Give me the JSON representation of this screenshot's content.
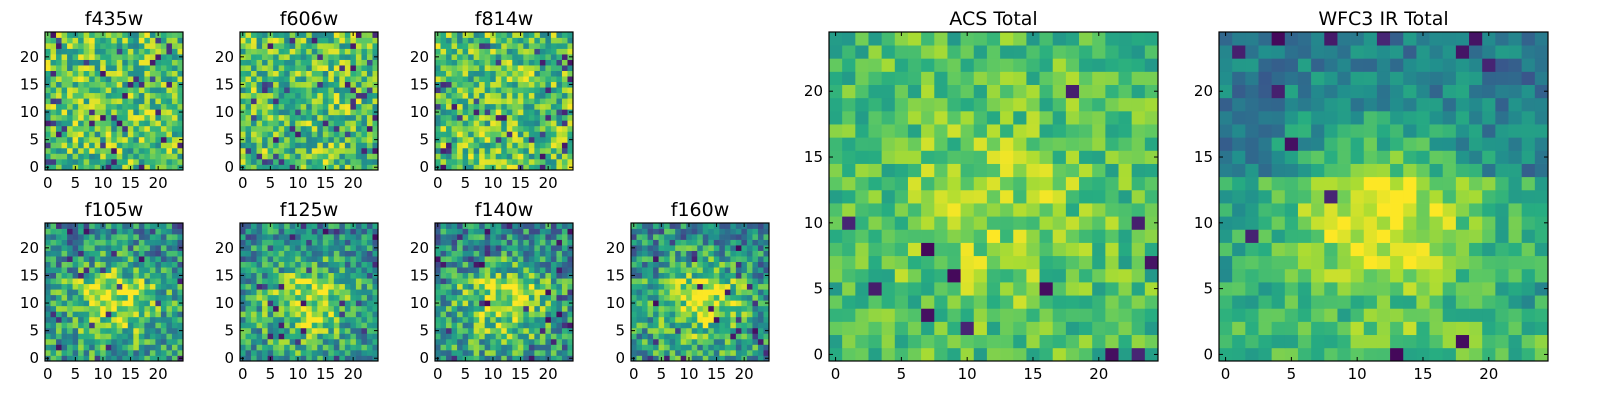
{
  "figure": {
    "colormap": "viridis",
    "colors": {
      "low": "#440154",
      "mid": "#21918c",
      "high": "#fde725",
      "frame": "#000000",
      "background": "#ffffff"
    }
  },
  "chart_data": [
    {
      "type": "heatmap",
      "title": "f435w",
      "grid_size": [
        25,
        25
      ],
      "xlim": [
        -0.5,
        24.5
      ],
      "ylim": [
        -0.5,
        24.5
      ],
      "x_ticks": [
        0,
        5,
        10,
        15,
        20
      ],
      "y_ticks": [
        0,
        5,
        10,
        15,
        20
      ],
      "pattern": "uniform-noise",
      "seed": 11
    },
    {
      "type": "heatmap",
      "title": "f606w",
      "grid_size": [
        25,
        25
      ],
      "xlim": [
        -0.5,
        24.5
      ],
      "ylim": [
        -0.5,
        24.5
      ],
      "x_ticks": [
        0,
        5,
        10,
        15,
        20
      ],
      "y_ticks": [
        0,
        5,
        10,
        15,
        20
      ],
      "pattern": "uniform-noise",
      "seed": 23
    },
    {
      "type": "heatmap",
      "title": "f814w",
      "grid_size": [
        25,
        25
      ],
      "xlim": [
        -0.5,
        24.5
      ],
      "ylim": [
        -0.5,
        24.5
      ],
      "x_ticks": [
        0,
        5,
        10,
        15,
        20
      ],
      "y_ticks": [
        0,
        5,
        10,
        15,
        20
      ],
      "pattern": "uniform-noise",
      "seed": 37
    },
    {
      "type": "heatmap",
      "title": "f105w",
      "grid_size": [
        25,
        25
      ],
      "xlim": [
        -0.5,
        24.5
      ],
      "ylim": [
        -0.5,
        24.5
      ],
      "x_ticks": [
        0,
        5,
        10,
        15,
        20
      ],
      "y_ticks": [
        0,
        5,
        10,
        15,
        20
      ],
      "pattern": "central-source",
      "seed": 41
    },
    {
      "type": "heatmap",
      "title": "f125w",
      "grid_size": [
        25,
        25
      ],
      "xlim": [
        -0.5,
        24.5
      ],
      "ylim": [
        -0.5,
        24.5
      ],
      "x_ticks": [
        0,
        5,
        10,
        15,
        20
      ],
      "y_ticks": [
        0,
        5,
        10,
        15,
        20
      ],
      "pattern": "central-source",
      "seed": 53
    },
    {
      "type": "heatmap",
      "title": "f140w",
      "grid_size": [
        25,
        25
      ],
      "xlim": [
        -0.5,
        24.5
      ],
      "ylim": [
        -0.5,
        24.5
      ],
      "x_ticks": [
        0,
        5,
        10,
        15,
        20
      ],
      "y_ticks": [
        0,
        5,
        10,
        15,
        20
      ],
      "pattern": "central-source",
      "seed": 67
    },
    {
      "type": "heatmap",
      "title": "f160w",
      "grid_size": [
        25,
        25
      ],
      "xlim": [
        -0.5,
        24.5
      ],
      "ylim": [
        -0.5,
        24.5
      ],
      "x_ticks": [
        0,
        5,
        10,
        15,
        20
      ],
      "y_ticks": [
        0,
        5,
        10,
        15,
        20
      ],
      "pattern": "central-source",
      "seed": 79
    },
    {
      "type": "heatmap",
      "title": "ACS Total",
      "grid_size": [
        25,
        25
      ],
      "xlim": [
        -0.5,
        24.5
      ],
      "ylim": [
        -0.5,
        24.5
      ],
      "x_ticks": [
        0,
        5,
        10,
        15,
        20
      ],
      "y_ticks": [
        0,
        5,
        10,
        15,
        20
      ],
      "pattern": "stacked-noise",
      "seed": 83
    },
    {
      "type": "heatmap",
      "title": "WFC3 IR Total",
      "grid_size": [
        25,
        25
      ],
      "xlim": [
        -0.5,
        24.5
      ],
      "ylim": [
        -0.5,
        24.5
      ],
      "x_ticks": [
        0,
        5,
        10,
        15,
        20
      ],
      "y_ticks": [
        0,
        5,
        10,
        15,
        20
      ],
      "pattern": "stacked-source",
      "seed": 97
    }
  ]
}
